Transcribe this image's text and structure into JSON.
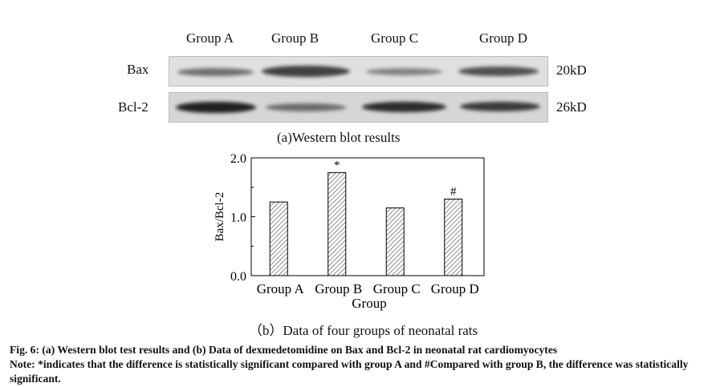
{
  "blot": {
    "groups": [
      "Group A",
      "Group B",
      "Group C",
      "Group D"
    ],
    "rows": [
      {
        "label": "Bax",
        "size": "20kD"
      },
      {
        "label": "Bcl-2",
        "size": "26kD"
      }
    ],
    "caption": "(a)Western blot results"
  },
  "chart_data": {
    "type": "bar",
    "categories": [
      "Group A",
      "Group B",
      "Group C",
      "Group D"
    ],
    "values": [
      1.25,
      1.75,
      1.15,
      1.3
    ],
    "annotations": [
      "",
      "*",
      "",
      "#"
    ],
    "xlabel": "Group",
    "ylabel": "Bax/Bcl-2",
    "ylim": [
      0.0,
      2.0
    ],
    "yticks": [
      "0.0",
      "1.0",
      "2.0"
    ],
    "bar_fill": "diagonal hatch",
    "caption": "（b）Data of four groups of neonatal rats"
  },
  "figure_caption": {
    "line1": "Fig. 6: (a) Western blot test results and (b) Data of dexmedetomidine on Bax and Bcl-2 in neonatal rat cardiomyocytes",
    "note": "Note: *indicates that the difference is statistically significant compared with group A and #Compared with group B, the difference was statistically significant."
  }
}
